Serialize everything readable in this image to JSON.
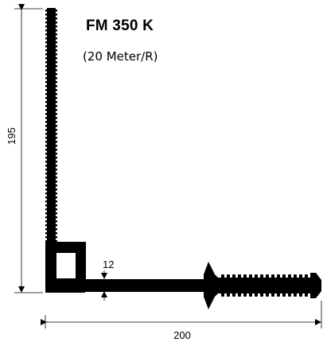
{
  "product": {
    "title": "FM 350 K",
    "subtitle": "(20 Meter/R)"
  },
  "dimensions": {
    "height": "195",
    "width": "200",
    "thickness": "12"
  },
  "colors": {
    "profile": "#000000",
    "dimension_lines": "#000000",
    "background": "#ffffff"
  }
}
